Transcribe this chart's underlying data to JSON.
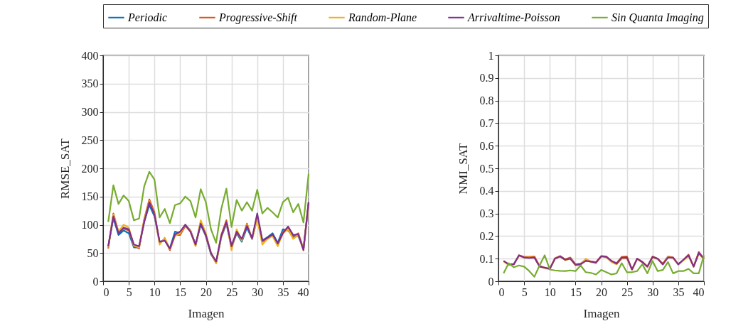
{
  "chart_data": [
    {
      "type": "line",
      "xlabel": "Imagen",
      "ylabel": "RMSE_SAT",
      "xlim": [
        0,
        40
      ],
      "xticks": [
        0,
        5,
        10,
        15,
        20,
        25,
        30,
        35,
        40
      ],
      "ylim": [
        0,
        400
      ],
      "yticks": [
        0,
        50,
        100,
        150,
        200,
        250,
        300,
        350,
        400
      ],
      "grid": true,
      "legend": "top",
      "line_style": "solid",
      "marker": "none",
      "x": [
        1,
        2,
        3,
        4,
        5,
        6,
        7,
        8,
        9,
        10,
        11,
        12,
        13,
        14,
        15,
        16,
        17,
        18,
        19,
        20,
        21,
        22,
        23,
        24,
        25,
        26,
        27,
        28,
        29,
        30,
        31,
        32,
        33,
        34,
        35,
        36,
        37,
        38,
        39,
        40
      ],
      "series": [
        {
          "name": "Periodic",
          "color": "#0072bd",
          "values": [
            62,
            112,
            82,
            90,
            85,
            60,
            60,
            105,
            135,
            115,
            70,
            72,
            58,
            88,
            85,
            100,
            90,
            65,
            100,
            80,
            48,
            33,
            78,
            102,
            60,
            85,
            70,
            95,
            75,
            115,
            72,
            78,
            85,
            68,
            92,
            90,
            78,
            80,
            57,
            138
          ]
        },
        {
          "name": "Progressive-Shift",
          "color": "#d95319",
          "values": [
            58,
            120,
            87,
            93,
            90,
            63,
            58,
            110,
            145,
            122,
            68,
            75,
            55,
            82,
            82,
            98,
            88,
            63,
            105,
            80,
            50,
            32,
            82,
            108,
            62,
            87,
            73,
            102,
            75,
            112,
            70,
            75,
            82,
            65,
            88,
            95,
            80,
            85,
            57,
            140
          ]
        },
        {
          "name": "Random-Plane",
          "color": "#edb120",
          "values": [
            60,
            118,
            88,
            100,
            95,
            63,
            60,
            108,
            142,
            118,
            65,
            77,
            57,
            80,
            85,
            100,
            90,
            62,
            108,
            85,
            50,
            32,
            78,
            105,
            55,
            92,
            72,
            100,
            75,
            110,
            65,
            75,
            80,
            62,
            85,
            92,
            75,
            82,
            55,
            135
          ]
        },
        {
          "name": "Arrivaltime-Poisson",
          "color": "#7e2f8e",
          "values": [
            62,
            115,
            85,
            95,
            92,
            65,
            62,
            105,
            140,
            118,
            70,
            72,
            58,
            83,
            88,
            100,
            88,
            65,
            102,
            82,
            50,
            35,
            80,
            105,
            62,
            88,
            75,
            98,
            76,
            120,
            72,
            77,
            83,
            67,
            85,
            97,
            82,
            83,
            55,
            140
          ]
        },
        {
          "name": "Sin Quanta Imaging",
          "color": "#77ac30",
          "values": [
            105,
            170,
            137,
            152,
            142,
            108,
            111,
            168,
            194,
            180,
            113,
            128,
            103,
            135,
            138,
            150,
            142,
            113,
            163,
            140,
            92,
            68,
            128,
            164,
            96,
            144,
            125,
            140,
            125,
            162,
            120,
            130,
            122,
            113,
            140,
            148,
            122,
            137,
            104,
            190
          ]
        }
      ]
    },
    {
      "type": "line",
      "xlabel": "Imagen",
      "ylabel": "NMI_SAT",
      "xlim": [
        0,
        40
      ],
      "xticks": [
        0,
        5,
        10,
        15,
        20,
        25,
        30,
        35,
        40
      ],
      "ylim": [
        0,
        1
      ],
      "yticks": [
        0,
        0.1,
        0.2,
        0.3,
        0.4,
        0.5,
        0.6,
        0.7,
        0.8,
        0.9,
        1
      ],
      "grid": true,
      "legend": "top",
      "line_style": "solid",
      "marker": "none",
      "x": [
        1,
        2,
        3,
        4,
        5,
        6,
        7,
        8,
        9,
        10,
        11,
        12,
        13,
        14,
        15,
        16,
        17,
        18,
        19,
        20,
        21,
        22,
        23,
        24,
        25,
        26,
        27,
        28,
        29,
        30,
        31,
        32,
        33,
        34,
        35,
        36,
        37,
        38,
        39,
        40
      ],
      "series": [
        {
          "name": "Periodic",
          "color": "#0072bd",
          "values": [
            null,
            null,
            null,
            null,
            null,
            null,
            null,
            null,
            null,
            null,
            null,
            null,
            null,
            null,
            null,
            null,
            null,
            null,
            null,
            null,
            null,
            null,
            null,
            null,
            null,
            null,
            null,
            null,
            null,
            null,
            null,
            null,
            null,
            null,
            null,
            null,
            null,
            null,
            null,
            null
          ]
        },
        {
          "name": "Progressive-Shift",
          "color": "#d95319",
          "values": [
            0.09,
            0.075,
            0.077,
            0.115,
            0.108,
            0.108,
            0.11,
            0.068,
            0.06,
            0.055,
            0.102,
            0.112,
            0.097,
            0.105,
            0.075,
            0.078,
            0.095,
            0.088,
            0.085,
            0.112,
            0.11,
            0.09,
            0.08,
            0.108,
            0.11,
            0.052,
            0.1,
            0.087,
            0.065,
            0.11,
            0.1,
            0.078,
            0.11,
            0.105,
            0.075,
            0.095,
            0.118,
            0.065,
            0.13,
            0.1
          ]
        },
        {
          "name": "Random-Plane",
          "color": "#edb120",
          "values": [
            0.088,
            0.072,
            0.075,
            0.112,
            0.105,
            0.105,
            0.105,
            0.065,
            0.058,
            0.053,
            0.1,
            0.11,
            0.093,
            0.1,
            0.07,
            0.073,
            0.1,
            0.085,
            0.08,
            0.11,
            0.106,
            0.085,
            0.075,
            0.1,
            0.102,
            0.05,
            0.098,
            0.083,
            0.062,
            0.105,
            0.098,
            0.073,
            0.108,
            0.102,
            0.073,
            0.092,
            0.112,
            0.063,
            0.122,
            0.098
          ]
        },
        {
          "name": "Arrivaltime-Poisson",
          "color": "#7e2f8e",
          "values": [
            0.09,
            0.075,
            0.075,
            0.115,
            0.105,
            0.103,
            0.105,
            0.065,
            0.06,
            0.055,
            0.1,
            0.11,
            0.095,
            0.1,
            0.073,
            0.075,
            0.09,
            0.087,
            0.083,
            0.11,
            0.108,
            0.09,
            0.078,
            0.104,
            0.105,
            0.052,
            0.1,
            0.085,
            0.065,
            0.108,
            0.1,
            0.075,
            0.105,
            0.105,
            0.075,
            0.095,
            0.115,
            0.065,
            0.125,
            0.1
          ]
        },
        {
          "name": "Sin Quanta Imaging",
          "color": "#77ac30",
          "values": [
            0.035,
            0.08,
            0.062,
            0.07,
            0.065,
            0.045,
            0.02,
            0.07,
            0.115,
            0.052,
            0.048,
            0.046,
            0.045,
            0.048,
            0.045,
            0.07,
            0.04,
            0.037,
            0.03,
            0.05,
            0.04,
            0.03,
            0.035,
            0.08,
            0.04,
            0.04,
            0.045,
            0.075,
            0.035,
            0.09,
            0.045,
            0.05,
            0.085,
            0.035,
            0.045,
            0.045,
            0.055,
            0.035,
            0.035,
            0.115
          ]
        }
      ]
    }
  ]
}
